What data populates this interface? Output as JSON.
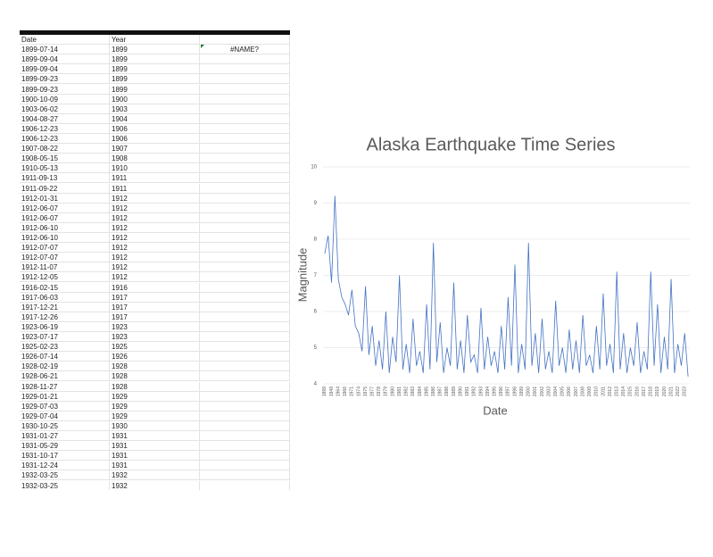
{
  "sheet": {
    "headers": [
      "Date",
      "Year"
    ],
    "error_cell": "#NAME?",
    "rows": [
      [
        "1899-07-14",
        1899
      ],
      [
        "1899-09-04",
        1899
      ],
      [
        "1899-09-04",
        1899
      ],
      [
        "1899-09-23",
        1899
      ],
      [
        "1899-09-23",
        1899
      ],
      [
        "1900-10-09",
        1900
      ],
      [
        "1903-06-02",
        1903
      ],
      [
        "1904-08-27",
        1904
      ],
      [
        "1906-12-23",
        1906
      ],
      [
        "1906-12-23",
        1906
      ],
      [
        "1907-08-22",
        1907
      ],
      [
        "1908-05-15",
        1908
      ],
      [
        "1910-05-13",
        1910
      ],
      [
        "1911-09-13",
        1911
      ],
      [
        "1911-09-22",
        1911
      ],
      [
        "1912-01-31",
        1912
      ],
      [
        "1912-06-07",
        1912
      ],
      [
        "1912-06-07",
        1912
      ],
      [
        "1912-06-10",
        1912
      ],
      [
        "1912-06-10",
        1912
      ],
      [
        "1912-07-07",
        1912
      ],
      [
        "1912-07-07",
        1912
      ],
      [
        "1912-11-07",
        1912
      ],
      [
        "1912-12-05",
        1912
      ],
      [
        "1916-02-15",
        1916
      ],
      [
        "1917-06-03",
        1917
      ],
      [
        "1917-12-21",
        1917
      ],
      [
        "1917-12-26",
        1917
      ],
      [
        "1923-06-19",
        1923
      ],
      [
        "1923-07-17",
        1923
      ],
      [
        "1925-02-23",
        1925
      ],
      [
        "1926-07-14",
        1926
      ],
      [
        "1928-02-19",
        1928
      ],
      [
        "1928-06-21",
        1928
      ],
      [
        "1928-11-27",
        1928
      ],
      [
        "1929-01-21",
        1929
      ],
      [
        "1929-07-03",
        1929
      ],
      [
        "1929-07-04",
        1929
      ],
      [
        "1930-10-25",
        1930
      ],
      [
        "1931-01-27",
        1931
      ],
      [
        "1931-05-29",
        1931
      ],
      [
        "1931-10-17",
        1931
      ],
      [
        "1931-12-24",
        1931
      ],
      [
        "1932-03-25",
        1932
      ],
      [
        "1932-03-25",
        1932
      ]
    ]
  },
  "chart_data": {
    "type": "line",
    "title": "Alaska Earthquake Time Series",
    "x_label": "Date",
    "y_label": "Magnitude",
    "ylim": [
      4,
      10
    ],
    "yticks": [
      4,
      5,
      6,
      7,
      8,
      9,
      10
    ],
    "grid": true,
    "categories": [
      "1899",
      null,
      "1949",
      null,
      "1964",
      null,
      "1966",
      null,
      "1971",
      null,
      "1974",
      null,
      "1975",
      null,
      "1977",
      null,
      "1978",
      null,
      "1979",
      null,
      "1980",
      null,
      "1981",
      null,
      "1982",
      null,
      "1983",
      null,
      "1984",
      null,
      "1985",
      null,
      "1986",
      null,
      "1987",
      null,
      "1988",
      null,
      "1989",
      null,
      "1990",
      null,
      "1991",
      null,
      "1992",
      null,
      "1993",
      null,
      "1994",
      null,
      "1995",
      null,
      "1996",
      null,
      "1997",
      null,
      "1998",
      null,
      "1999",
      null,
      "2000",
      null,
      "2001",
      null,
      "2002",
      null,
      "2003",
      null,
      "2004",
      null,
      "2005",
      null,
      "2006",
      null,
      "2007",
      null,
      "2008",
      null,
      "2009",
      null,
      "2010",
      null,
      "2011",
      null,
      "2012",
      null,
      "2013",
      null,
      "2014",
      null,
      "2015",
      null,
      "2016",
      null,
      "2017",
      null,
      "2018",
      null,
      "2019",
      null,
      "2020",
      null,
      "2021",
      null,
      "2022",
      null,
      "2023",
      null
    ],
    "series": [
      {
        "name": "Magnitude",
        "color": "#4472c4",
        "values": [
          7.6,
          8.1,
          6.8,
          9.2,
          6.9,
          6.4,
          6.2,
          5.9,
          6.6,
          5.6,
          5.4,
          4.9,
          6.7,
          4.8,
          5.6,
          4.5,
          5.2,
          4.4,
          6.0,
          4.3,
          5.3,
          4.6,
          7.0,
          4.4,
          5.1,
          4.3,
          5.8,
          4.5,
          4.9,
          4.3,
          6.2,
          4.4,
          7.9,
          4.6,
          5.7,
          4.3,
          5.0,
          4.5,
          6.8,
          4.4,
          5.2,
          4.3,
          5.9,
          4.6,
          4.8,
          4.3,
          6.1,
          4.4,
          5.3,
          4.5,
          4.9,
          4.3,
          5.6,
          4.4,
          6.4,
          4.5,
          7.3,
          4.3,
          5.1,
          4.4,
          7.9,
          4.5,
          5.4,
          4.3,
          5.8,
          4.4,
          4.9,
          4.3,
          6.3,
          4.5,
          5.0,
          4.3,
          5.5,
          4.4,
          5.2,
          4.3,
          5.9,
          4.5,
          4.8,
          4.3,
          5.6,
          4.4,
          6.5,
          4.5,
          5.1,
          4.3,
          7.1,
          4.4,
          5.4,
          4.3,
          5.0,
          4.5,
          5.7,
          4.3,
          4.9,
          4.4,
          7.1,
          4.5,
          6.2,
          4.3,
          5.3,
          4.4,
          6.9,
          4.3,
          5.1,
          4.5,
          5.4,
          4.2
        ]
      }
    ]
  }
}
